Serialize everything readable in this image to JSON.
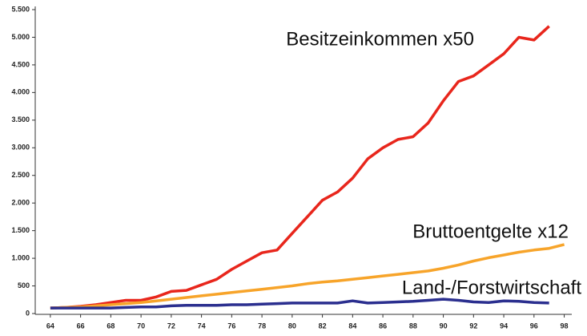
{
  "chart_data": {
    "type": "line",
    "x": [
      64,
      65,
      66,
      67,
      68,
      69,
      70,
      71,
      72,
      73,
      74,
      75,
      76,
      77,
      78,
      79,
      80,
      81,
      82,
      83,
      84,
      85,
      86,
      87,
      88,
      89,
      90,
      91,
      92,
      93,
      94,
      95,
      96,
      97,
      98
    ],
    "series": [
      {
        "name": "Besitzeinkommen x50",
        "color": "#e8261c",
        "values": [
          100,
          110,
          130,
          160,
          200,
          240,
          240,
          300,
          400,
          420,
          520,
          620,
          800,
          950,
          1100,
          1150,
          1450,
          1750,
          2050,
          2200,
          2450,
          2800,
          3000,
          3150,
          3200,
          3450,
          3850,
          4200,
          4300,
          4500,
          4700,
          5000,
          4950,
          5200,
          null
        ]
      },
      {
        "name": "Bruttoentgelte x12",
        "color": "#f7a42a",
        "values": [
          100,
          110,
          120,
          140,
          160,
          180,
          200,
          230,
          260,
          290,
          320,
          350,
          380,
          410,
          440,
          470,
          500,
          540,
          570,
          590,
          620,
          650,
          680,
          710,
          740,
          770,
          820,
          880,
          950,
          1010,
          1060,
          1110,
          1150,
          1180,
          1250
        ]
      },
      {
        "name": "Land-/Forstwirtschaft",
        "color": "#2b2f8f",
        "values": [
          100,
          100,
          100,
          100,
          100,
          110,
          120,
          120,
          140,
          150,
          150,
          150,
          160,
          160,
          170,
          180,
          190,
          190,
          190,
          190,
          230,
          190,
          200,
          210,
          220,
          240,
          260,
          240,
          210,
          200,
          230,
          220,
          200,
          190,
          null
        ]
      }
    ],
    "xlim": [
      63,
      98.5
    ],
    "xticks": [
      64,
      66,
      68,
      70,
      72,
      74,
      76,
      78,
      80,
      82,
      84,
      86,
      88,
      90,
      92,
      94,
      96,
      98
    ],
    "ylim": [
      0,
      5500
    ],
    "yticks": [
      0,
      500,
      {
        "value": 1000,
        "label": "1.000"
      },
      {
        "value": 1500,
        "label": "1.500"
      },
      {
        "value": 2000,
        "label": "2.000"
      },
      {
        "value": 2500,
        "label": "2.500"
      },
      {
        "value": 3000,
        "label": "3.000"
      },
      {
        "value": 3500,
        "label": "3.500"
      },
      {
        "value": 4000,
        "label": "4.000"
      },
      {
        "value": 4500,
        "label": "4.500"
      },
      {
        "value": 5000,
        "label": "5.000"
      },
      {
        "value": 5500,
        "label": "5.500"
      }
    ]
  }
}
